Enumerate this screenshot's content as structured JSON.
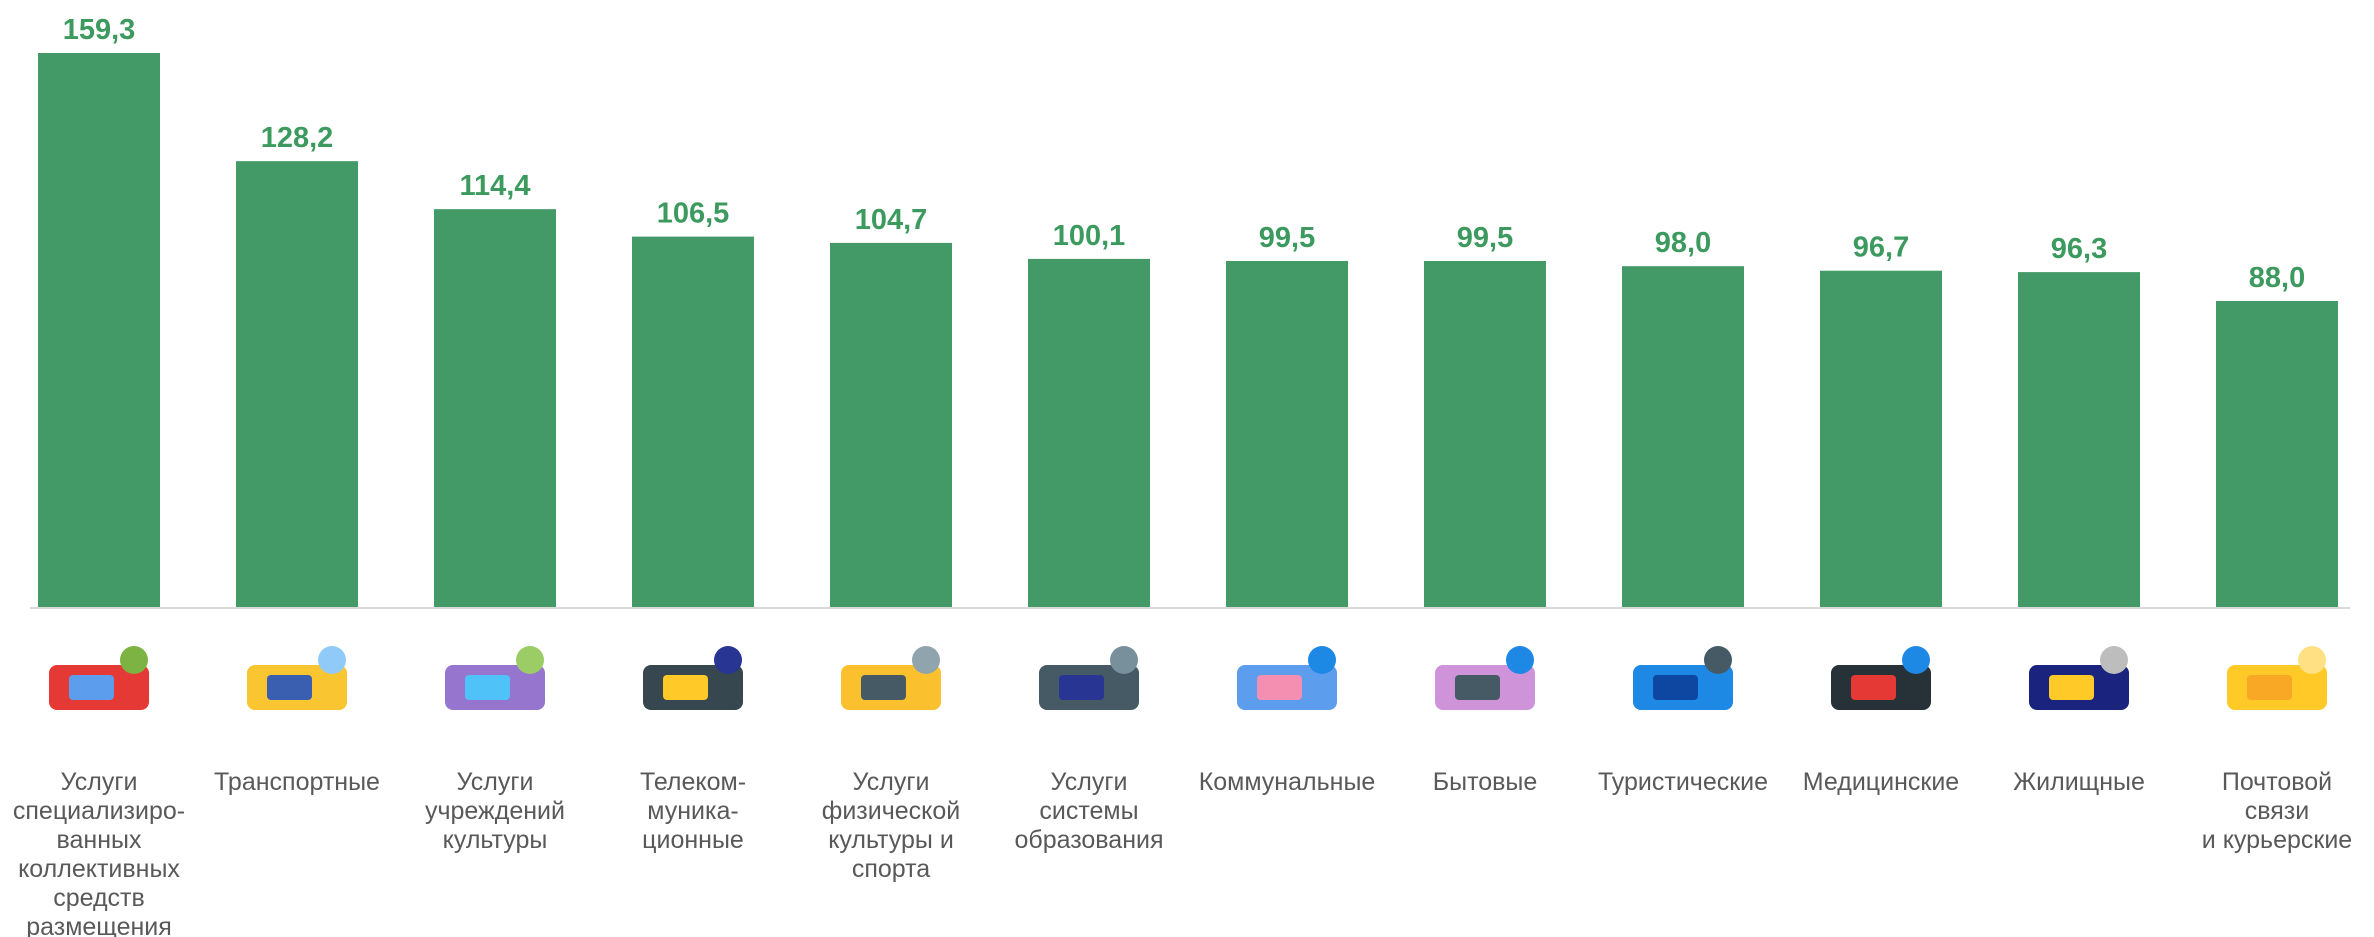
{
  "chart_data": {
    "type": "bar",
    "categories": [
      "Услуги\nспециализиро-\nванных\nколлективных\nсредств\nразмещения",
      "Транспортные",
      "Услуги\nучреждений\nкультуры",
      "Телеком-\nмуника-\nционные",
      "Услуги\nфизической\nкультуры и\nспорта",
      "Услуги\nсистемы\nобразования",
      "Коммунальные",
      "Бытовые",
      "Туристические",
      "Медицинские",
      "Жилищные",
      "Почтовой\nсвязи\nи курьерские"
    ],
    "values": [
      159.3,
      128.2,
      114.4,
      106.5,
      104.7,
      100.1,
      99.5,
      99.5,
      98.0,
      96.7,
      96.3,
      88.0
    ],
    "value_labels": [
      "159,3",
      "128,2",
      "114,4",
      "106,5",
      "104,7",
      "100,1",
      "99,5",
      "99,5",
      "98,0",
      "96,7",
      "96,3",
      "88,0"
    ],
    "color": "#449a67",
    "grid": false
  }
}
